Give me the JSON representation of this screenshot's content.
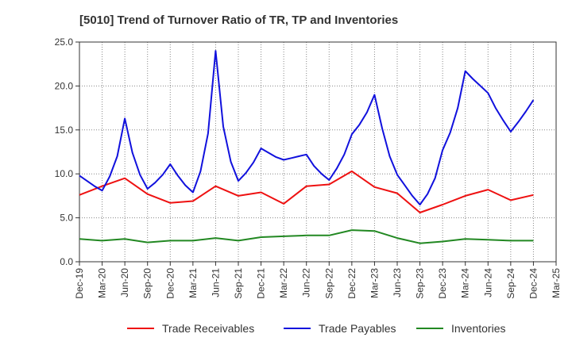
{
  "chart_data": {
    "type": "line",
    "title": "[5010]  Trend of Turnover Ratio of TR, TP and Inventories",
    "xlabel": "",
    "ylabel": "",
    "ylim": [
      0,
      25
    ],
    "y_ticks": [
      "0.0",
      "5.0",
      "10.0",
      "15.0",
      "20.0",
      "25.0"
    ],
    "x_ticks": [
      "Dec-19",
      "Mar-20",
      "Jun-20",
      "Sep-20",
      "Dec-20",
      "Mar-21",
      "Jun-21",
      "Sep-21",
      "Dec-21",
      "Mar-22",
      "Jun-22",
      "Sep-22",
      "Dec-22",
      "Mar-23",
      "Jun-23",
      "Sep-23",
      "Dec-23",
      "Mar-24",
      "Jun-24",
      "Sep-24",
      "Dec-24",
      "Mar-25"
    ],
    "grid": true,
    "legend_position": "bottom",
    "x": [
      "Dec-19",
      "Jan-20",
      "Feb-20",
      "Mar-20",
      "Apr-20",
      "May-20",
      "Jun-20",
      "Jul-20",
      "Aug-20",
      "Sep-20",
      "Oct-20",
      "Nov-20",
      "Dec-20",
      "Jan-21",
      "Feb-21",
      "Mar-21",
      "Apr-21",
      "May-21",
      "Jun-21",
      "Jul-21",
      "Aug-21",
      "Sep-21",
      "Oct-21",
      "Nov-21",
      "Dec-21",
      "Jan-22",
      "Feb-22",
      "Mar-22",
      "Apr-22",
      "May-22",
      "Jun-22",
      "Jul-22",
      "Aug-22",
      "Sep-22",
      "Oct-22",
      "Nov-22",
      "Dec-22",
      "Jan-23",
      "Feb-23",
      "Mar-23",
      "Apr-23",
      "May-23",
      "Jun-23",
      "Jul-23",
      "Aug-23",
      "Sep-23",
      "Oct-23",
      "Nov-23",
      "Dec-23",
      "Jan-24",
      "Feb-24",
      "Mar-24",
      "Apr-24",
      "May-24",
      "Jun-24",
      "Jul-24",
      "Aug-24",
      "Sep-24",
      "Oct-24",
      "Nov-24",
      "Dec-24"
    ],
    "series": [
      {
        "name": "Trade Receivables",
        "color": "#ee1111",
        "values": [
          7.6,
          null,
          null,
          8.6,
          null,
          null,
          9.5,
          null,
          null,
          7.7,
          null,
          null,
          6.7,
          null,
          null,
          6.9,
          null,
          null,
          8.6,
          null,
          null,
          7.5,
          null,
          null,
          7.9,
          null,
          null,
          6.6,
          null,
          null,
          8.6,
          null,
          null,
          8.8,
          null,
          null,
          10.3,
          null,
          null,
          8.5,
          null,
          null,
          7.8,
          null,
          null,
          5.6,
          null,
          null,
          6.5,
          null,
          null,
          7.5,
          null,
          null,
          8.2,
          null,
          null,
          7.0,
          null,
          null,
          7.6
        ]
      },
      {
        "name": "Trade Payables",
        "color": "#1111dd",
        "values": [
          9.8,
          9.2,
          8.6,
          8.1,
          9.7,
          12.0,
          16.3,
          12.4,
          9.9,
          8.3,
          9.0,
          9.9,
          11.1,
          9.8,
          8.7,
          7.9,
          10.3,
          14.6,
          24.0,
          15.4,
          11.4,
          9.2,
          10.1,
          11.3,
          12.9,
          12.4,
          11.9,
          11.6,
          11.8,
          12.0,
          12.2,
          10.9,
          10.0,
          9.3,
          10.6,
          12.2,
          14.5,
          15.6,
          17.0,
          19.0,
          15.2,
          12.0,
          9.9,
          8.7,
          7.5,
          6.5,
          7.7,
          9.5,
          12.7,
          14.7,
          17.5,
          21.7,
          20.8,
          20.0,
          19.2,
          17.5,
          16.1,
          14.8,
          15.9,
          17.1,
          18.4
        ]
      },
      {
        "name": "Inventories",
        "color": "#228822",
        "values": [
          2.6,
          null,
          null,
          2.4,
          null,
          null,
          2.6,
          null,
          null,
          2.2,
          null,
          null,
          2.4,
          null,
          null,
          2.4,
          null,
          null,
          2.7,
          null,
          null,
          2.4,
          null,
          null,
          2.8,
          null,
          null,
          2.9,
          null,
          null,
          3.0,
          null,
          null,
          3.0,
          null,
          null,
          3.6,
          null,
          null,
          3.5,
          null,
          null,
          2.7,
          null,
          null,
          2.1,
          null,
          null,
          2.3,
          null,
          null,
          2.6,
          null,
          null,
          2.5,
          null,
          null,
          2.4,
          null,
          null,
          2.4
        ]
      }
    ]
  }
}
